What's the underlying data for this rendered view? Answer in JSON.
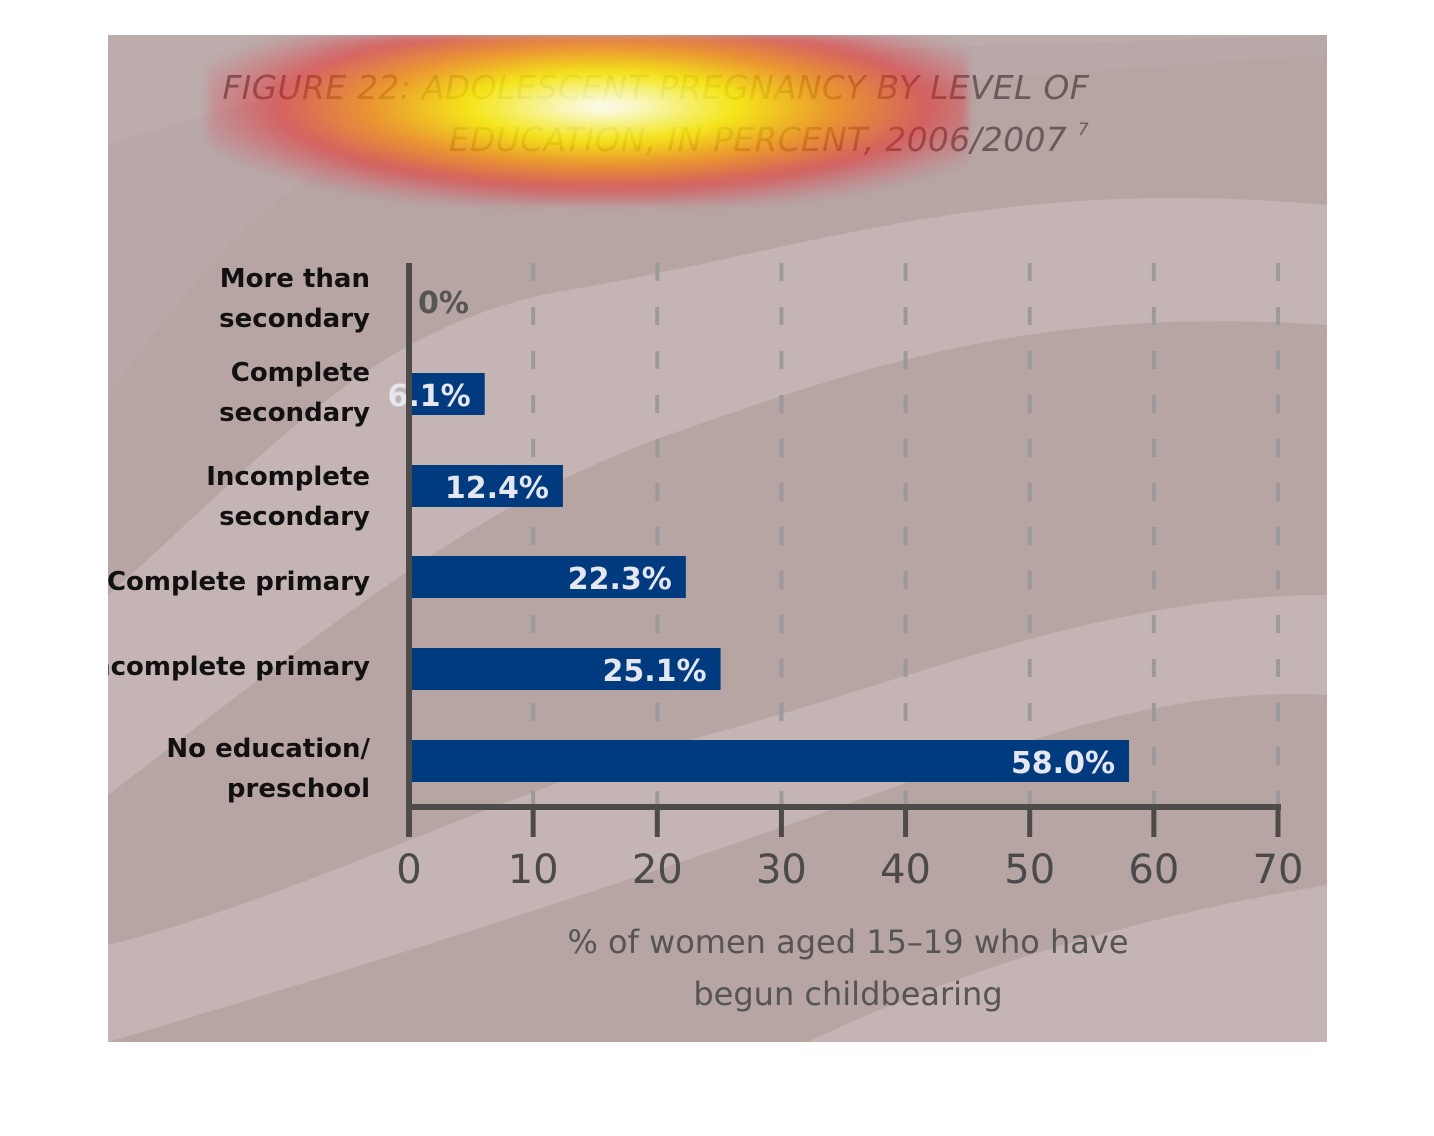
{
  "title": {
    "line1": "FIGURE 22: ADOLESCENT PREGNANCY BY LEVEL OF",
    "line2": "EDUCATION, IN PERCENT, 2006/2007",
    "footnote_marker": "7"
  },
  "colors": {
    "panel_background": "#b7a5a4",
    "band_light": "#c4b5b4",
    "bar": "#003b80",
    "axis": "#4d4a4a",
    "grid": "#9a9a9a",
    "label_text": "#111111",
    "value_text": "#e6e6ee",
    "tick_text": "#4a4a4a"
  },
  "chart_data": {
    "type": "bar",
    "orientation": "horizontal",
    "categories": [
      [
        "More than",
        "secondary"
      ],
      [
        "Complete",
        "secondary"
      ],
      [
        "Incomplete",
        "secondary"
      ],
      [
        "Complete primary"
      ],
      [
        "Incomplete primary"
      ],
      [
        "No education/",
        "preschool"
      ]
    ],
    "values": [
      0,
      6.1,
      12.4,
      22.3,
      25.1,
      58.0
    ],
    "value_labels": [
      "0%",
      "6.1%",
      "12.4%",
      "22.3%",
      "25.1%",
      "58.0%"
    ],
    "xlabel": [
      "% of women aged 15–19 who have",
      "begun childbearing"
    ],
    "xlim": [
      0,
      70
    ],
    "xticks": [
      0,
      10,
      20,
      30,
      40,
      50,
      60,
      70
    ],
    "grid": "vertical dashed"
  }
}
